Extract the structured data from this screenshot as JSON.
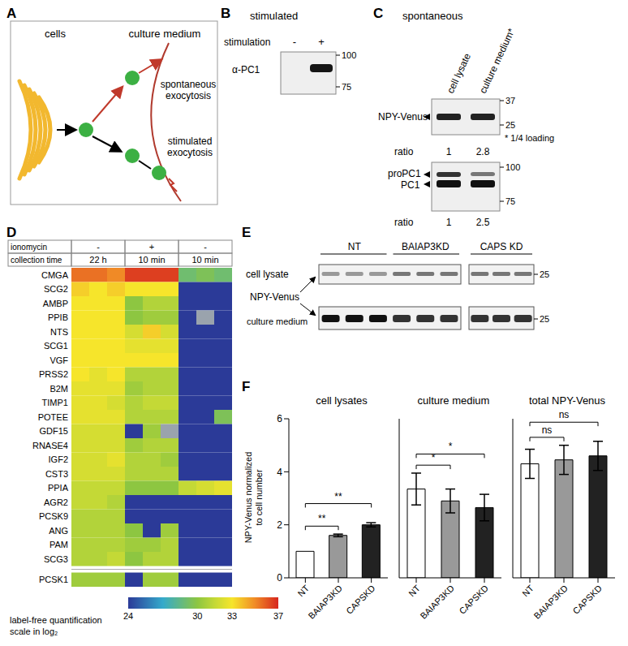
{
  "panels": {
    "A": {
      "letter": "A",
      "cells": "cells",
      "culture_medium": "culture medium",
      "spontaneous": [
        "spontaneous",
        "exocytosis"
      ],
      "stimulated": [
        "stimulated",
        "exocytosis"
      ]
    },
    "B": {
      "letter": "B",
      "title": "stimulated",
      "row_label": "stimulation",
      "lanes": [
        "-",
        "+"
      ],
      "antibody": "α-PC1",
      "markers": [
        100,
        75
      ]
    },
    "C": {
      "letter": "C",
      "title": "spontaneous",
      "lanes": [
        "cell lysate",
        "culture medium*"
      ],
      "top_blot": {
        "band": "NPY-Venus",
        "markers": [
          37,
          25
        ],
        "note": "* 1/4 loading",
        "ratio_label": "ratio",
        "ratios": [
          1,
          2.8
        ]
      },
      "bottom_blot": {
        "bands": [
          "proPC1",
          "PC1"
        ],
        "markers": [
          100,
          75
        ],
        "ratio_label": "ratio",
        "ratios": [
          1,
          2.5
        ]
      }
    },
    "E": {
      "letter": "E",
      "lanes": [
        "NT",
        "BAIAP3KD",
        "CAPS KD"
      ],
      "rows": [
        "cell lysate",
        "culture medium"
      ],
      "band": "NPY-Venus",
      "marker": 25
    }
  },
  "chart_data": [
    {
      "panel": "D",
      "type": "heatmap",
      "header": [
        {
          "label": "ionomycin",
          "groups": [
            "-",
            "+",
            "-"
          ]
        },
        {
          "label": "collection time",
          "groups": [
            "22 h",
            "10 min",
            "10 min"
          ]
        }
      ],
      "rows": [
        "CMGA",
        "SCG2",
        "AMBP",
        "PPIB",
        "NTS",
        "SCG1",
        "VGF",
        "PRSS2",
        "B2M",
        "TIMP1",
        "POTEE",
        "GDF15",
        "RNASE4",
        "IGF2",
        "CST3",
        "PPIA",
        "AGR2",
        "PCSK9",
        "ANG",
        "PAM",
        "SCG3"
      ],
      "cells": [
        [
          35.5,
          35.5,
          35,
          36.5,
          36.5,
          36.5,
          29,
          29.5,
          29
        ],
        [
          33.5,
          33,
          33.5,
          33,
          33,
          33,
          24,
          24,
          24
        ],
        [
          33,
          33,
          33,
          30,
          31,
          31,
          24,
          24,
          24
        ],
        [
          33,
          33,
          33,
          30,
          30.5,
          30.5,
          24,
          null,
          24
        ],
        [
          33,
          33,
          33,
          32,
          33.5,
          32,
          24,
          24,
          24
        ],
        [
          33,
          33,
          33,
          32.5,
          32.5,
          32.5,
          24,
          24,
          24
        ],
        [
          33,
          33,
          33,
          33,
          33,
          33,
          24,
          24,
          24
        ],
        [
          33,
          32.5,
          33,
          31,
          31,
          31,
          24,
          24,
          24
        ],
        [
          32.5,
          32.5,
          32.5,
          30.5,
          31,
          31,
          24,
          24,
          24
        ],
        [
          32.5,
          32.5,
          32,
          31,
          31.5,
          31.5,
          24,
          24,
          24
        ],
        [
          32.5,
          32.5,
          32.5,
          31,
          31,
          31,
          24,
          24,
          29.5
        ],
        [
          32,
          32,
          32,
          24,
          30.5,
          null,
          24,
          24,
          24
        ],
        [
          32,
          32,
          32,
          30.5,
          31,
          31,
          24,
          24,
          24
        ],
        [
          32,
          32,
          32.5,
          31,
          31,
          30.5,
          24,
          24,
          24
        ],
        [
          32,
          32,
          32,
          31,
          31,
          31,
          24,
          24,
          24
        ],
        [
          31.5,
          31.5,
          31.5,
          30,
          30,
          30,
          31.5,
          32,
          32.5
        ],
        [
          31.5,
          31.5,
          31,
          24,
          24,
          24,
          24,
          24,
          24
        ],
        [
          31,
          31,
          31,
          24,
          24,
          24,
          24,
          24,
          24
        ],
        [
          31,
          31,
          31,
          30,
          24,
          30.5,
          24,
          24,
          24
        ],
        [
          31,
          31,
          31,
          30.5,
          30.5,
          31,
          24,
          24,
          24
        ],
        [
          31,
          31,
          31.5,
          30,
          31,
          31,
          24,
          24,
          24
        ]
      ],
      "extra_rows": [
        "PCSK1"
      ],
      "extra_cells": [
        [
          30.5,
          30.5,
          30.5,
          24,
          30.5,
          30.5,
          24,
          24,
          24
        ]
      ],
      "colorbar": {
        "label": [
          "label-free quantification",
          "scale in log₂"
        ],
        "range": [
          24,
          37
        ],
        "ticks": [
          24,
          30,
          33,
          37
        ]
      }
    },
    {
      "panel": "F",
      "type": "bar",
      "title": "cell lysates",
      "ylabel": [
        "NPY-Venus normalized",
        "to cell number"
      ],
      "categories": [
        "NT",
        "BAIAP3KD",
        "CAPSKD"
      ],
      "values": [
        1,
        1.6,
        2.0
      ],
      "errors": [
        0,
        0.05,
        0.08
      ],
      "colors": [
        "#ffffff",
        "#999999",
        "#222222"
      ],
      "ylim": [
        0,
        6
      ],
      "yticks": [
        0,
        2,
        4,
        6
      ],
      "annotations": [
        {
          "from": "NT",
          "to": "BAIAP3KD",
          "text": "**"
        },
        {
          "from": "NT",
          "to": "CAPSKD",
          "text": "**"
        }
      ]
    },
    {
      "type": "bar",
      "title": "culture medium",
      "categories": [
        "NT",
        "BAIAP3KD",
        "CAPSKD"
      ],
      "values": [
        3.35,
        2.9,
        2.65
      ],
      "errors": [
        0.6,
        0.45,
        0.5
      ],
      "colors": [
        "#ffffff",
        "#999999",
        "#222222"
      ],
      "ylim": [
        0,
        6
      ],
      "yticks": [
        0,
        2,
        4,
        6
      ],
      "tick_labels": "x",
      "annotations": [
        {
          "from": "NT",
          "to": "BAIAP3KD",
          "text": "*"
        },
        {
          "from": "NT",
          "to": "CAPSKD",
          "text": "*"
        }
      ]
    },
    {
      "type": "bar",
      "title": "total NPY-Venus",
      "categories": [
        "NT",
        "BAIAP3KD",
        "CAPSKD"
      ],
      "values": [
        4.3,
        4.45,
        4.6
      ],
      "errors": [
        0.55,
        0.55,
        0.55
      ],
      "colors": [
        "#ffffff",
        "#999999",
        "#222222"
      ],
      "ylim": [
        0,
        6
      ],
      "yticks": [
        0,
        2,
        4,
        6
      ],
      "tick_labels": "x",
      "annotations": [
        {
          "from": "NT",
          "to": "BAIAP3KD",
          "text": "ns"
        },
        {
          "from": "NT",
          "to": "CAPSKD",
          "text": "ns"
        }
      ]
    }
  ]
}
